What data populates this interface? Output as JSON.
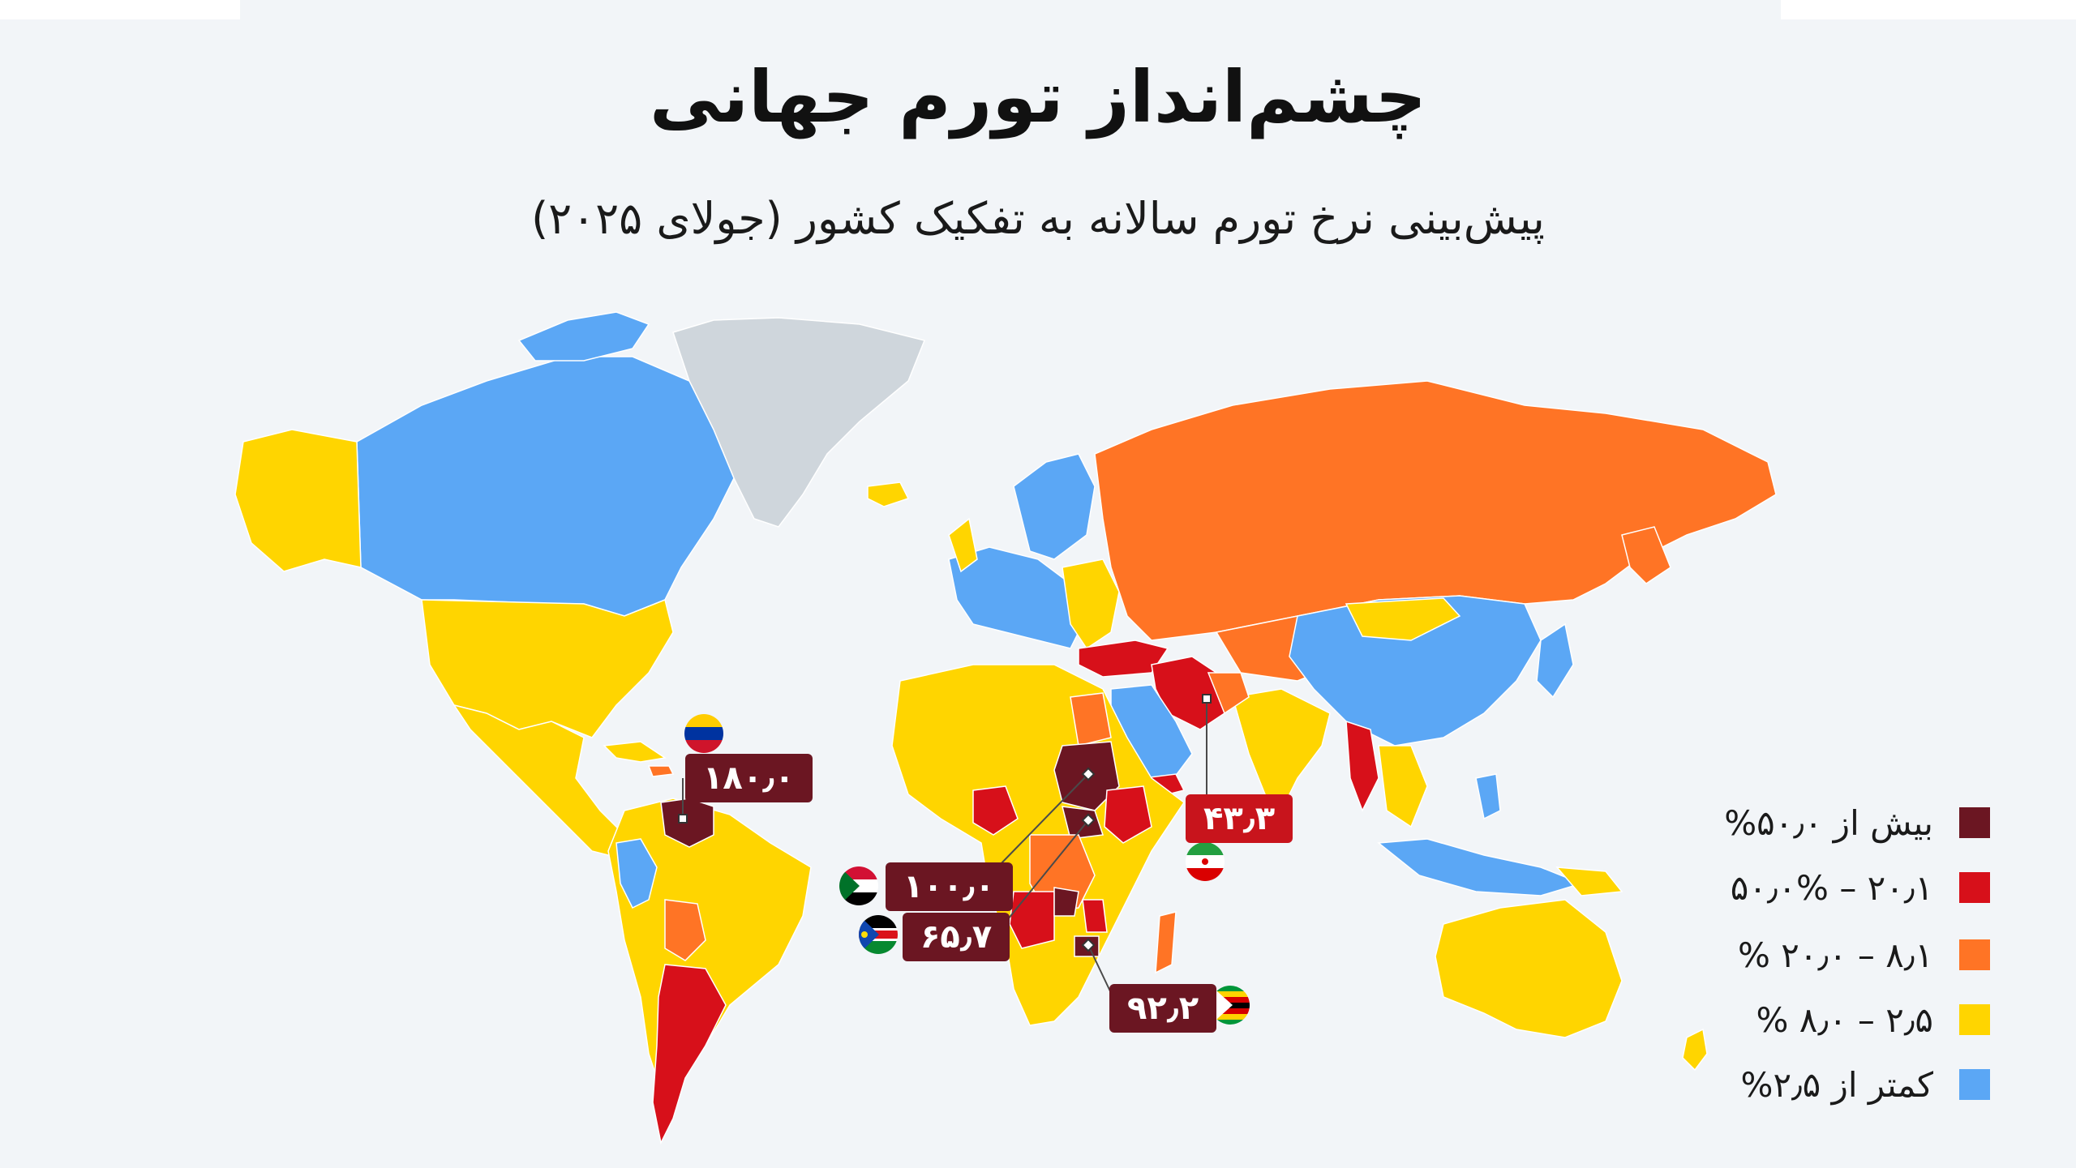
{
  "title": "چشم‌انداز تورم جهانی",
  "subtitle": "پیش‌بینی نرخ تورم سالانه به تفکیک کشور (جولای ۲۰۲۵)",
  "colors": {
    "over_50": "#6b1622",
    "c20_50": "#d7101a",
    "c8_20": "#ff7425",
    "c2_5_8": "#ffd500",
    "under_2_5": "#5ba7f5",
    "no_data": "#cfd6dc"
  },
  "legend": [
    {
      "label": "بیش از ۵۰٫۰%",
      "color": "#6b1622"
    },
    {
      "label": "۲۰٫۱ – ۵۰٫۰%",
      "color": "#d7101a"
    },
    {
      "label": "۸٫۱ – ۲۰٫۰ %",
      "color": "#ff7425"
    },
    {
      "label": "۲٫۵ – ۸٫۰ %",
      "color": "#ffd500"
    },
    {
      "label": "کمتر از ۲٫۵%",
      "color": "#5ba7f5"
    }
  ],
  "callouts": {
    "venezuela": {
      "value": "۱۸۰٫۰",
      "flag": "venezuela-flag-icon"
    },
    "iran": {
      "value": "۴۳٫۳",
      "flag": "iran-flag-icon"
    },
    "sudan": {
      "value": "۱۰۰٫۰",
      "flag": "sudan-flag-icon"
    },
    "south_sudan": {
      "value": "۶۵٫۷",
      "flag": "south-sudan-flag-icon"
    },
    "zimbabwe": {
      "value": "۹۲٫۲",
      "flag": "zimbabwe-flag-icon"
    }
  }
}
